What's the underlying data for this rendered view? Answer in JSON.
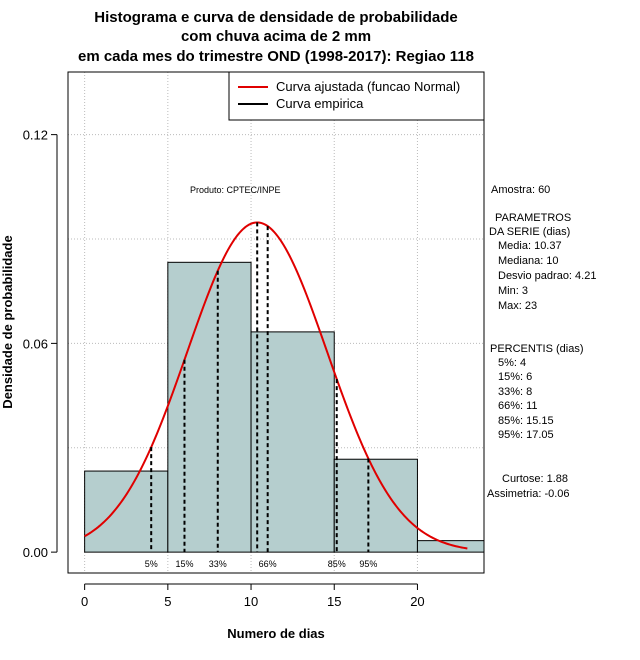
{
  "chart_data": {
    "type": "bar",
    "title_lines": [
      "Histograma e curva de densidade de probabilidade",
      "com chuva acima de 2 mm",
      "em cada mes do trimestre OND (1998-2017): Regiao 118"
    ],
    "xlabel": "Numero de dias",
    "ylabel": "Densidade de probabilidade",
    "xlim": [
      -1,
      24
    ],
    "ylim": [
      -0.006,
      0.138
    ],
    "x_ticks": [
      0,
      5,
      10,
      15,
      20
    ],
    "y_ticks": [
      0.0,
      0.06,
      0.12
    ],
    "y_tick_labels": [
      "0.00",
      "0.06",
      "0.12"
    ],
    "bins": [
      {
        "start": 0,
        "end": 5,
        "density": 0.0233
      },
      {
        "start": 5,
        "end": 10,
        "density": 0.0833
      },
      {
        "start": 10,
        "end": 15,
        "density": 0.0633
      },
      {
        "start": 15,
        "end": 20,
        "density": 0.0267
      },
      {
        "start": 20,
        "end": 25,
        "density": 0.0033
      }
    ],
    "normal_curve": {
      "mean": 10.37,
      "sd": 4.21,
      "x_from": 0,
      "x_to": 23
    },
    "percentile_lines": [
      {
        "label": "5%",
        "x": 4
      },
      {
        "label": "15%",
        "x": 6
      },
      {
        "label": "33%",
        "x": 8
      },
      {
        "label": "66%",
        "x": 11
      },
      {
        "label": "85%",
        "x": 15.15
      },
      {
        "label": "95%",
        "x": 17.05
      }
    ],
    "legend": {
      "placement": "top-right",
      "entries": [
        {
          "label": "Curva ajustada (funcao Normal)",
          "color": "#e00000"
        },
        {
          "label": "Curva empirica",
          "color": "#000000"
        }
      ]
    },
    "grid": true,
    "colors": {
      "bar_fill": "#b5cece",
      "curve": "#e00000",
      "grid": "#bbbbbb"
    },
    "source_note": "Produto: CPTEC/INPE",
    "stats": {
      "amostra": "Amostra: 60",
      "param_title_1": "PARAMETROS",
      "param_title_2": "DA SERIE (dias)",
      "media": "Media: 10.37",
      "mediana": "Mediana: 10",
      "desvio": "Desvio padrao: 4.21",
      "min": "Min: 3",
      "max": "Max: 23",
      "perc_title": "PERCENTIS (dias)",
      "p5": "5%: 4",
      "p15": "15%: 6",
      "p33": "33%: 8",
      "p66": "66%: 11",
      "p85": "85%: 15.15",
      "p95": "95%: 17.05",
      "curtose": "Curtose: 1.88",
      "assimetria": "Assimetria: -0.06"
    }
  }
}
